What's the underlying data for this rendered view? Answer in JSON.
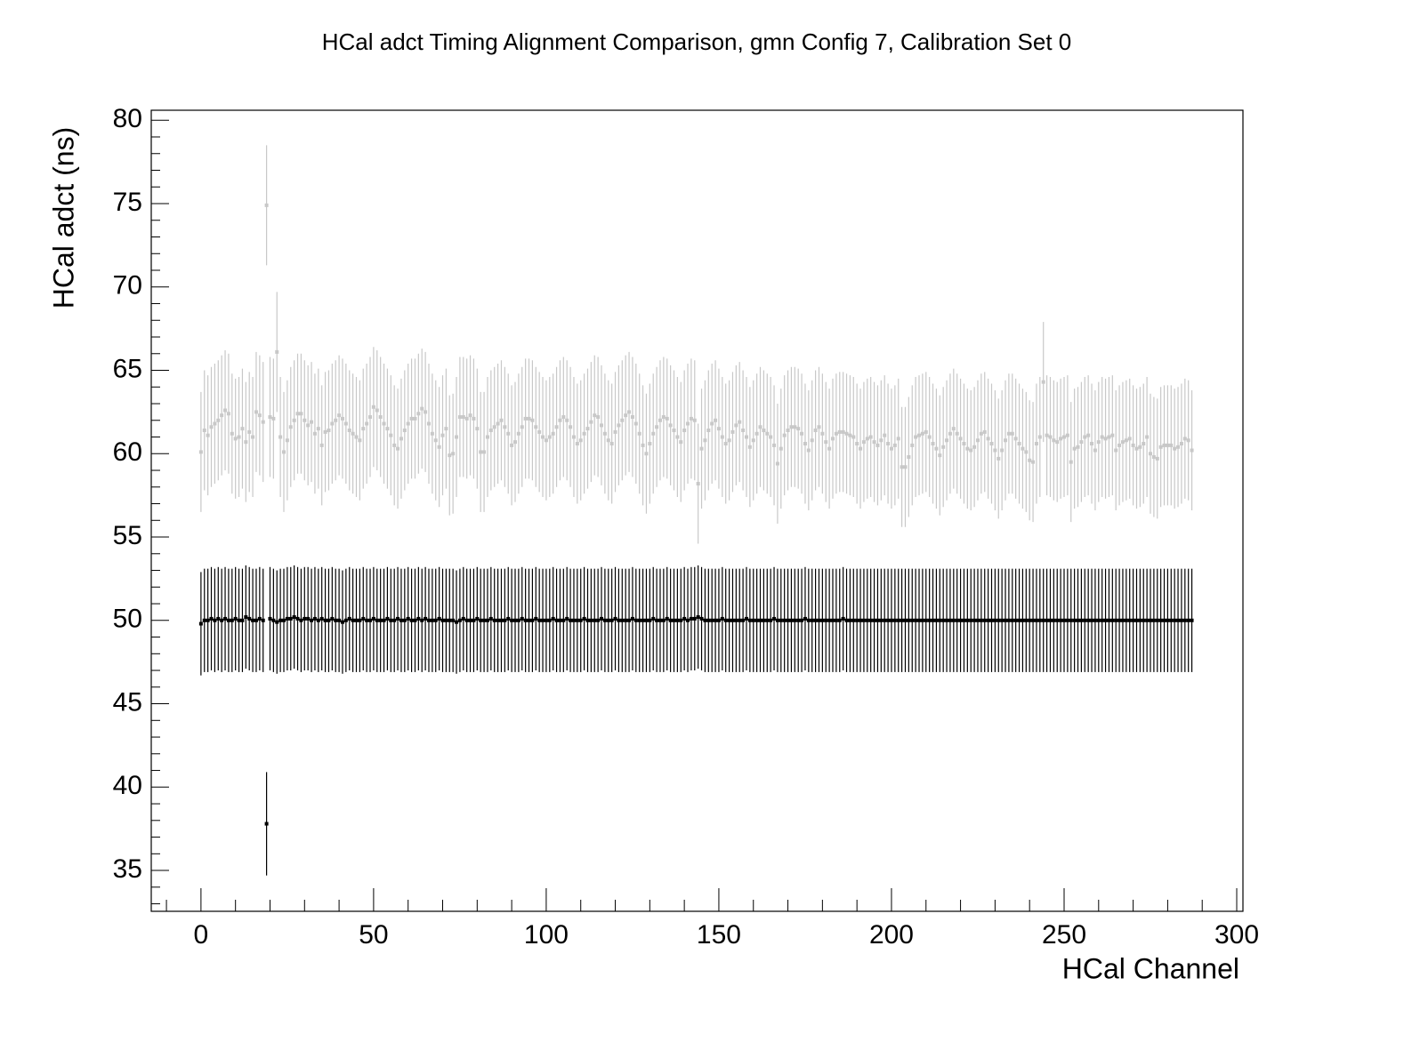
{
  "chart_data": {
    "type": "errorbar",
    "title": "HCal adct Timing Alignment Comparison, gmn Config 7, Calibration Set 0",
    "x_label": "HCal Channel",
    "y_label": "HCal adct (ns)",
    "xlim": [
      -14.4,
      301.8
    ],
    "ylim": [
      32.55,
      80.6
    ],
    "xticks": [
      0,
      50,
      100,
      150,
      200,
      250,
      300
    ],
    "yticks": [
      35,
      40,
      45,
      50,
      55,
      60,
      65,
      70,
      75,
      80
    ],
    "xminorticks": [
      -10,
      10,
      20,
      30,
      40,
      60,
      70,
      80,
      90,
      110,
      120,
      130,
      140,
      160,
      170,
      180,
      190,
      210,
      220,
      230,
      240,
      260,
      270,
      280,
      290
    ],
    "yminorticks": [
      33,
      34,
      36,
      37,
      38,
      39,
      41,
      42,
      43,
      44,
      46,
      47,
      48,
      49,
      51,
      52,
      53,
      54,
      56,
      57,
      58,
      59,
      61,
      62,
      63,
      64,
      66,
      67,
      68,
      69,
      71,
      72,
      73,
      74,
      76,
      77,
      78,
      79
    ],
    "x": [
      0,
      1,
      2,
      3,
      4,
      5,
      6,
      7,
      8,
      9,
      10,
      11,
      12,
      13,
      14,
      15,
      16,
      17,
      18,
      19,
      20,
      21,
      22,
      23,
      24,
      25,
      26,
      27,
      28,
      29,
      30,
      31,
      32,
      33,
      34,
      35,
      36,
      37,
      38,
      39,
      40,
      41,
      42,
      43,
      44,
      45,
      46,
      47,
      48,
      49,
      50,
      51,
      52,
      53,
      54,
      55,
      56,
      57,
      58,
      59,
      60,
      61,
      62,
      63,
      64,
      65,
      66,
      67,
      68,
      69,
      70,
      71,
      72,
      73,
      74,
      75,
      76,
      77,
      78,
      79,
      80,
      81,
      82,
      83,
      84,
      85,
      86,
      87,
      88,
      89,
      90,
      91,
      92,
      93,
      94,
      95,
      96,
      97,
      98,
      99,
      100,
      101,
      102,
      103,
      104,
      105,
      106,
      107,
      108,
      109,
      110,
      111,
      112,
      113,
      114,
      115,
      116,
      117,
      118,
      119,
      120,
      121,
      122,
      123,
      124,
      125,
      126,
      127,
      128,
      129,
      130,
      131,
      132,
      133,
      134,
      135,
      136,
      137,
      138,
      139,
      140,
      141,
      142,
      143,
      144,
      145,
      146,
      147,
      148,
      149,
      150,
      151,
      152,
      153,
      154,
      155,
      156,
      157,
      158,
      159,
      160,
      161,
      162,
      163,
      164,
      165,
      166,
      167,
      168,
      169,
      170,
      171,
      172,
      173,
      174,
      175,
      176,
      177,
      178,
      179,
      180,
      181,
      182,
      183,
      184,
      185,
      186,
      187,
      188,
      189,
      190,
      191,
      192,
      193,
      194,
      195,
      196,
      197,
      198,
      199,
      200,
      201,
      202,
      203,
      204,
      205,
      206,
      207,
      208,
      209,
      210,
      211,
      212,
      213,
      214,
      215,
      216,
      217,
      218,
      219,
      220,
      221,
      222,
      223,
      224,
      225,
      226,
      227,
      228,
      229,
      230,
      231,
      232,
      233,
      234,
      235,
      236,
      237,
      238,
      239,
      240,
      241,
      242,
      243,
      244,
      245,
      246,
      247,
      248,
      249,
      250,
      251,
      252,
      253,
      254,
      255,
      256,
      257,
      258,
      259,
      260,
      261,
      262,
      263,
      264,
      265,
      266,
      267,
      268,
      269,
      270,
      271,
      272,
      273,
      274,
      275,
      276,
      277,
      278,
      279,
      280,
      281,
      282,
      283,
      284,
      285,
      286,
      287
    ],
    "series": [
      {
        "color": "#c8c8c8",
        "error": 3.6,
        "values": [
          60.1,
          61.4,
          61.1,
          61.6,
          61.8,
          62.0,
          62.3,
          62.6,
          62.4,
          61.2,
          60.9,
          61.0,
          61.5,
          60.7,
          61.3,
          61.0,
          62.5,
          62.3,
          61.9,
          74.9,
          62.2,
          62.1,
          66.1,
          61.0,
          60.1,
          60.8,
          61.6,
          62.0,
          62.4,
          62.4,
          62.0,
          61.7,
          61.9,
          61.2,
          61.5,
          60.5,
          61.3,
          61.4,
          61.8,
          62.0,
          62.3,
          62.1,
          61.8,
          61.4,
          61.2,
          61.0,
          60.8,
          61.5,
          61.8,
          62.2,
          62.8,
          62.6,
          62.2,
          61.8,
          61.5,
          61.1,
          60.5,
          60.3,
          60.9,
          61.4,
          61.8,
          62.1,
          62.1,
          62.4,
          62.7,
          62.5,
          61.8,
          61.2,
          60.8,
          60.4,
          61.1,
          61.5,
          59.9,
          60.0,
          61.0,
          62.2,
          62.2,
          62.1,
          62.3,
          62.1,
          61.5,
          60.1,
          60.1,
          61.0,
          61.4,
          61.6,
          61.8,
          62.0,
          61.6,
          61.2,
          60.5,
          60.7,
          61.2,
          61.6,
          62.1,
          62.1,
          62.0,
          61.6,
          61.3,
          61.0,
          60.8,
          61.0,
          61.2,
          61.6,
          62.0,
          62.2,
          62.0,
          61.6,
          61.0,
          60.6,
          60.8,
          61.2,
          61.5,
          61.9,
          62.3,
          62.2,
          61.7,
          61.2,
          60.8,
          60.6,
          61.3,
          61.7,
          62.0,
          62.3,
          62.5,
          62.2,
          61.8,
          61.2,
          60.5,
          60.0,
          60.6,
          61.2,
          61.6,
          62.0,
          62.2,
          62.1,
          61.7,
          61.4,
          61.0,
          60.7,
          61.4,
          61.8,
          62.1,
          62.0,
          58.2,
          60.3,
          60.8,
          61.4,
          61.8,
          62.0,
          61.5,
          61.0,
          60.6,
          60.8,
          61.3,
          61.7,
          61.9,
          61.4,
          61.0,
          60.4,
          60.8,
          61.2,
          61.6,
          61.4,
          61.2,
          61.0,
          60.5,
          59.4,
          60.3,
          61.1,
          61.4,
          61.6,
          61.6,
          61.5,
          61.2,
          60.6,
          60.2,
          60.8,
          61.4,
          61.6,
          61.2,
          60.7,
          60.3,
          60.9,
          61.2,
          61.3,
          61.3,
          61.2,
          61.1,
          61.0,
          60.6,
          60.3,
          60.7,
          60.9,
          61.0,
          60.7,
          60.5,
          60.8,
          61.1,
          60.6,
          60.3,
          60.5,
          60.9,
          59.2,
          59.2,
          59.8,
          60.5,
          61.0,
          61.1,
          61.2,
          61.3,
          61.0,
          60.6,
          60.3,
          59.9,
          60.4,
          60.8,
          61.2,
          61.5,
          61.2,
          60.9,
          60.6,
          60.3,
          60.2,
          60.4,
          60.8,
          61.2,
          61.3,
          60.9,
          60.6,
          60.2,
          59.7,
          60.2,
          60.8,
          61.2,
          61.2,
          60.9,
          60.6,
          60.3,
          60.1,
          59.6,
          59.5,
          60.6,
          61.0,
          64.3,
          61.1,
          61.0,
          60.8,
          60.7,
          60.9,
          61.0,
          61.1,
          59.5,
          60.3,
          60.4,
          60.7,
          61.0,
          61.1,
          60.6,
          60.2,
          60.7,
          61.0,
          60.9,
          61.0,
          61.1,
          60.2,
          60.5,
          60.7,
          60.8,
          60.9,
          60.5,
          60.3,
          60.4,
          60.6,
          61.0,
          60.0,
          59.8,
          59.7,
          60.4,
          60.5,
          60.5,
          60.5,
          60.3,
          60.4,
          60.6,
          60.9,
          60.8,
          60.2
        ]
      },
      {
        "color": "#000000",
        "error": 3.1,
        "values": [
          49.8,
          50.0,
          50.0,
          50.1,
          50.0,
          50.1,
          50.0,
          50.1,
          50.0,
          50.0,
          50.1,
          50.0,
          50.0,
          50.2,
          50.1,
          50.0,
          50.0,
          50.1,
          50.0,
          37.8,
          50.1,
          50.0,
          49.9,
          50.0,
          50.0,
          50.1,
          50.1,
          50.2,
          50.1,
          50.0,
          50.1,
          50.1,
          50.0,
          50.1,
          50.0,
          50.1,
          50.0,
          50.0,
          50.1,
          50.0,
          50.0,
          49.9,
          50.0,
          50.1,
          50.0,
          50.0,
          50.0,
          50.1,
          50.0,
          50.0,
          50.1,
          50.0,
          50.0,
          50.0,
          50.1,
          50.0,
          50.0,
          50.1,
          50.0,
          50.0,
          50.1,
          50.0,
          50.0,
          50.1,
          50.0,
          50.1,
          50.0,
          50.0,
          50.0,
          50.1,
          50.0,
          50.0,
          50.0,
          50.0,
          49.9,
          50.0,
          50.1,
          50.0,
          50.0,
          50.0,
          50.1,
          50.0,
          50.0,
          50.0,
          50.1,
          50.0,
          50.0,
          50.0,
          50.0,
          50.1,
          50.0,
          50.0,
          50.0,
          50.1,
          50.0,
          50.0,
          50.0,
          50.1,
          50.0,
          50.0,
          50.0,
          50.0,
          50.1,
          50.0,
          50.0,
          50.0,
          50.1,
          50.0,
          50.0,
          50.0,
          50.0,
          50.1,
          50.0,
          50.0,
          50.0,
          50.0,
          50.1,
          50.0,
          50.0,
          50.0,
          50.1,
          50.0,
          50.0,
          50.0,
          50.0,
          50.1,
          50.0,
          50.0,
          50.0,
          50.0,
          50.0,
          50.1,
          50.0,
          50.0,
          50.0,
          50.1,
          50.0,
          50.0,
          50.0,
          50.0,
          50.1,
          50.0,
          50.1,
          50.1,
          50.2,
          50.1,
          50.0,
          50.0,
          50.0,
          50.0,
          50.0,
          50.1,
          50.0,
          50.0,
          50.0,
          50.0,
          50.0,
          50.0,
          50.1,
          50.0,
          50.0,
          50.0,
          50.0,
          50.0,
          50.0,
          50.0,
          50.1,
          50.0,
          50.0,
          50.0,
          50.0,
          50.0,
          50.0,
          50.0,
          50.0,
          50.1,
          50.0,
          50.0,
          50.0,
          50.0,
          50.0,
          50.0,
          50.0,
          50.0,
          50.0,
          50.0,
          50.1,
          50.0,
          50.0,
          50.0,
          50.0,
          50.0,
          50.0,
          50.0,
          50.0,
          50.0,
          50.0,
          50.0,
          50.0,
          50.0,
          50.0,
          50.0,
          50.0,
          50.0,
          50.0,
          50.0,
          50.0,
          50.0,
          50.0,
          50.0,
          50.0,
          50.0,
          50.0,
          50.0,
          50.0,
          50.0,
          50.0,
          50.0,
          50.0,
          50.0,
          50.0,
          50.0,
          50.0,
          50.0,
          50.0,
          50.0,
          50.0,
          50.0,
          50.0,
          50.0,
          50.0,
          50.0,
          50.0,
          50.0,
          50.0,
          50.0,
          50.0,
          50.0,
          50.0,
          50.0,
          50.0,
          50.0,
          50.0,
          50.0,
          50.0,
          50.0,
          50.0,
          50.0,
          50.0,
          50.0,
          50.0,
          50.0,
          50.0,
          50.0,
          50.0,
          50.0,
          50.0,
          50.0,
          50.0,
          50.0,
          50.0,
          50.0,
          50.0,
          50.0,
          50.0,
          50.0,
          50.0,
          50.0,
          50.0,
          50.0,
          50.0,
          50.0,
          50.0,
          50.0,
          50.0,
          50.0,
          50.0,
          50.0,
          50.0,
          50.0,
          50.0,
          50.0,
          50.0,
          50.0,
          50.0,
          50.0,
          50.0,
          50.0
        ]
      }
    ]
  }
}
